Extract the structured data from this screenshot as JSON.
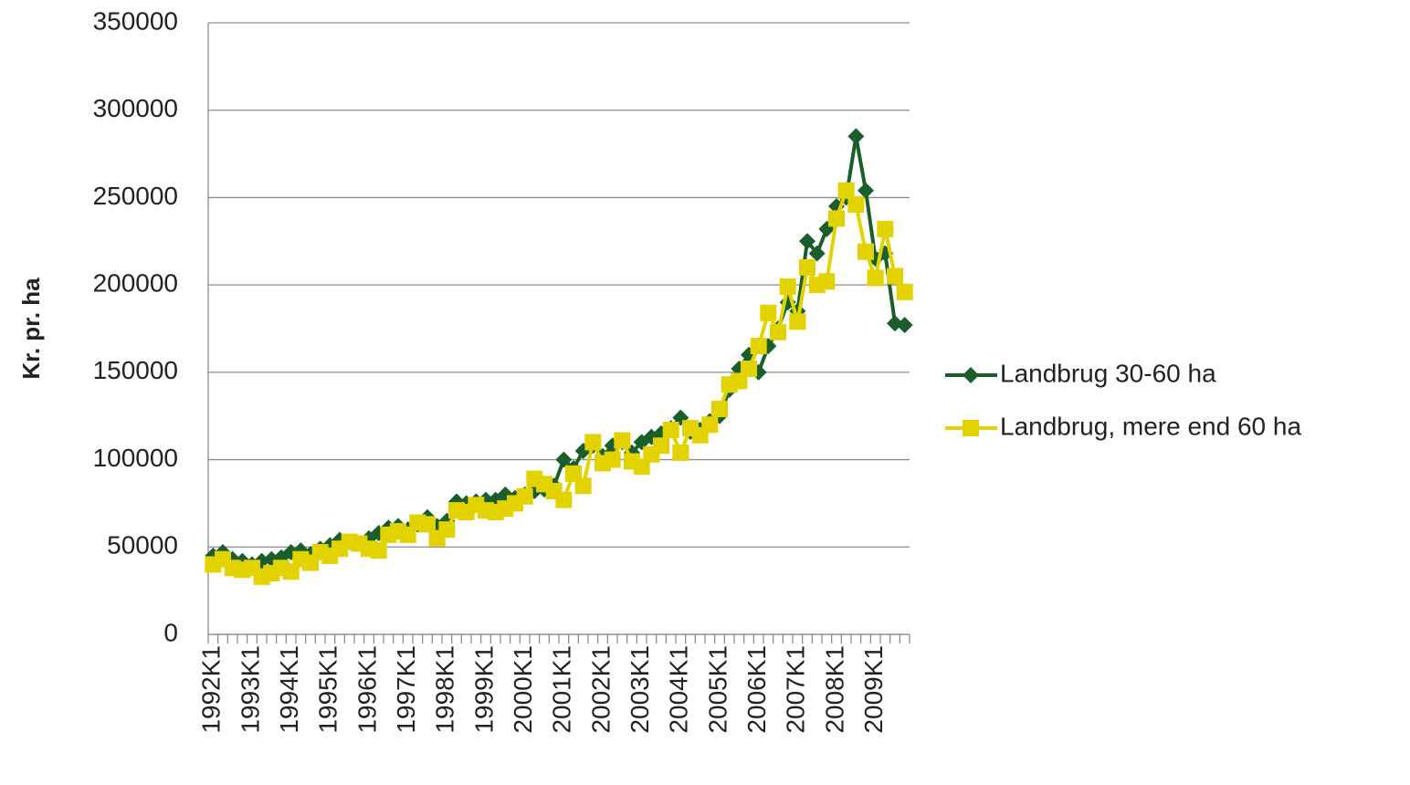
{
  "chart_data": {
    "type": "line",
    "ylabel": "Kr. pr. ha",
    "categories": [
      "1992K1",
      null,
      null,
      null,
      "1993K1",
      null,
      null,
      null,
      "1994K1",
      null,
      null,
      null,
      "1995K1",
      null,
      null,
      null,
      "1996K1",
      null,
      null,
      null,
      "1997K1",
      null,
      null,
      null,
      "1998K1",
      null,
      null,
      null,
      "1999K1",
      null,
      null,
      null,
      "2000K1",
      null,
      null,
      null,
      "2001K1",
      null,
      null,
      null,
      "2002K1",
      null,
      null,
      null,
      "2003K1",
      null,
      null,
      null,
      "2004K1",
      null,
      null,
      null,
      "2005K1",
      null,
      null,
      null,
      "2006K1",
      null,
      null,
      null,
      "2007K1",
      null,
      null,
      null,
      "2008K1",
      null,
      null,
      null,
      "2009K1",
      null,
      null,
      null
    ],
    "series": [
      {
        "name": "Landbrug 30-60 ha",
        "color": "#1b5e2b",
        "marker": "diamond",
        "values": [
          45000,
          47000,
          43000,
          42000,
          40000,
          42000,
          43000,
          44000,
          47000,
          48000,
          46000,
          49000,
          51000,
          54000,
          53000,
          52000,
          55000,
          58000,
          61000,
          62000,
          60000,
          63000,
          67000,
          62000,
          65000,
          76000,
          75000,
          76000,
          77000,
          77000,
          80000,
          78000,
          80000,
          82000,
          83000,
          85000,
          100000,
          95000,
          105000,
          108000,
          102000,
          108000,
          110000,
          104000,
          110000,
          113000,
          115000,
          118000,
          124000,
          116000,
          117000,
          122000,
          125000,
          140000,
          152000,
          160000,
          150000,
          165000,
          175000,
          190000,
          185000,
          225000,
          218000,
          232000,
          245000,
          250000,
          285000,
          254000,
          215000,
          218000,
          178000,
          177000
        ]
      },
      {
        "name": "Landbrug, mere end 60 ha",
        "color": "#e2d300",
        "marker": "square",
        "values": [
          40000,
          43000,
          38000,
          37000,
          38000,
          33000,
          35000,
          38000,
          36000,
          43000,
          41000,
          47000,
          45000,
          49000,
          53000,
          52000,
          49000,
          48000,
          57000,
          59000,
          57000,
          64000,
          63000,
          55000,
          60000,
          71000,
          70000,
          74000,
          71000,
          70000,
          72000,
          75000,
          79000,
          89000,
          86000,
          82000,
          77000,
          92000,
          85000,
          110000,
          98000,
          100000,
          111000,
          99000,
          96000,
          103000,
          108000,
          117000,
          104000,
          118000,
          114000,
          120000,
          129000,
          143000,
          145000,
          152000,
          165000,
          184000,
          173000,
          199000,
          179000,
          210000,
          200000,
          202000,
          238000,
          254000,
          246000,
          219000,
          204000,
          232000,
          205000,
          196000
        ]
      }
    ],
    "ylim": [
      0,
      350000
    ],
    "yticks": [
      0,
      50000,
      100000,
      150000,
      200000,
      250000,
      300000,
      350000
    ],
    "grid": true,
    "legend": "right"
  }
}
